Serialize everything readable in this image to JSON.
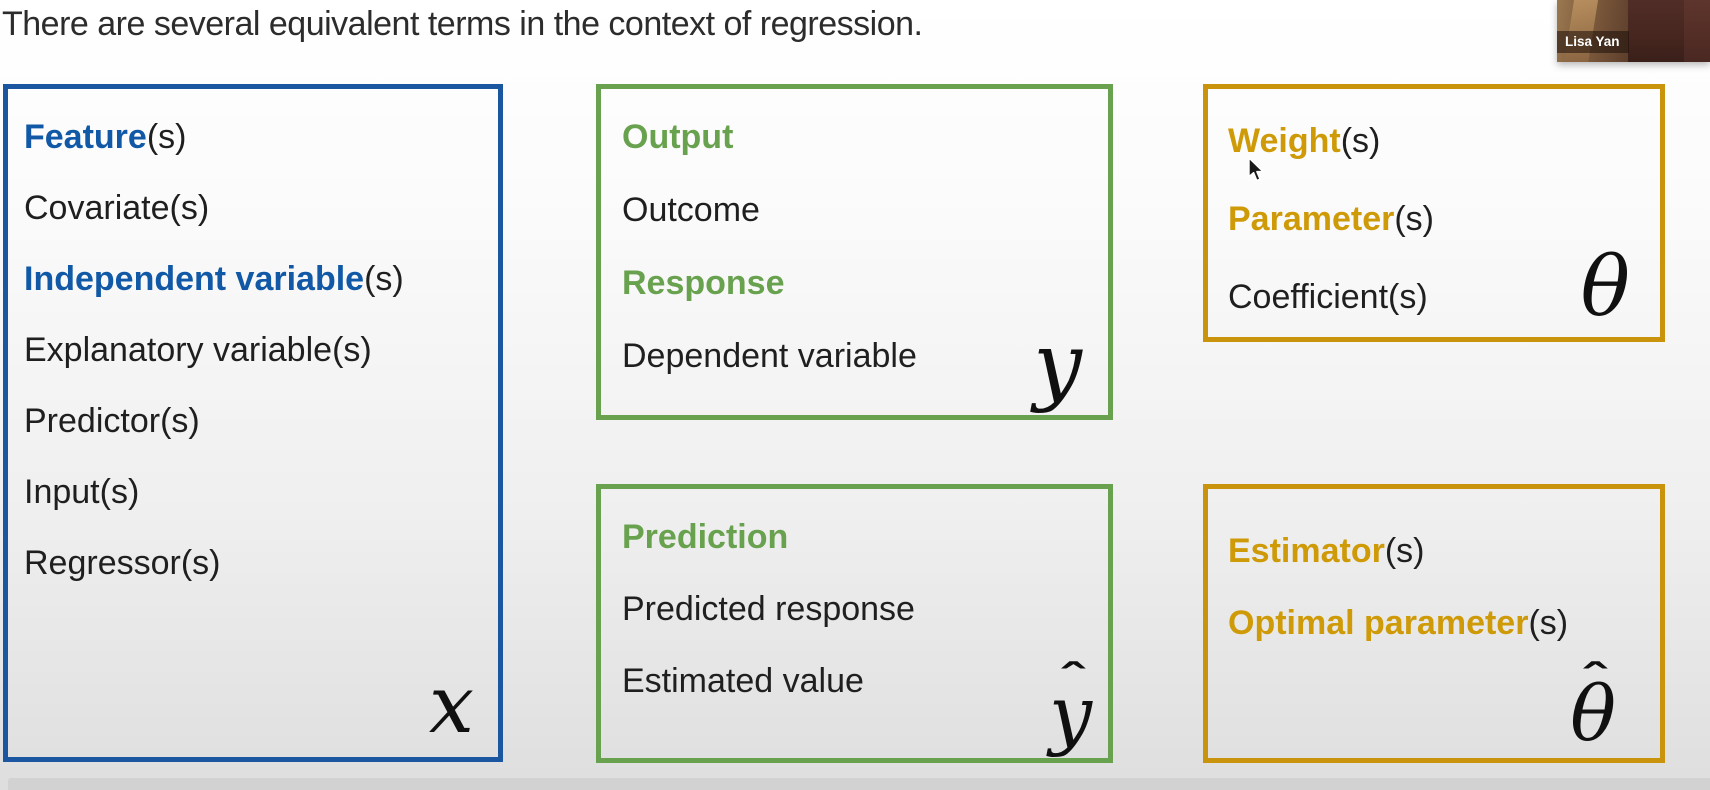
{
  "title": "There are several equivalent terms in the context of regression.",
  "plural_suffix": "(s)",
  "webcam": {
    "name": "Lisa Yan"
  },
  "colors": {
    "blue_accent": "#1158a6",
    "blue_border": "#1b57a0",
    "green_accent": "#69a24f",
    "green_border": "#69a24f",
    "gold_accent": "#cf9a08",
    "gold_border": "#c9940c",
    "body_text": "#1f1f1f",
    "title_text": "#2c2c2c"
  },
  "boxes": [
    {
      "name": "features",
      "accent_color": "#1158a6",
      "border_color": "#1b57a0",
      "terms": [
        {
          "label": "Feature",
          "emph": true,
          "plural": true
        },
        {
          "label": "Covariate",
          "emph": false,
          "plural": true
        },
        {
          "label": "Independent variable",
          "emph": true,
          "plural": true
        },
        {
          "label": "Explanatory variable",
          "emph": false,
          "plural": true
        },
        {
          "label": "Predictor",
          "emph": false,
          "plural": true
        },
        {
          "label": "Input",
          "emph": false,
          "plural": true
        },
        {
          "label": "Regressor",
          "emph": false,
          "plural": true
        }
      ],
      "symbol": {
        "glyph": "x",
        "hat": false
      }
    },
    {
      "name": "output",
      "accent_color": "#69a24f",
      "border_color": "#69a24f",
      "terms": [
        {
          "label": "Output",
          "emph": true,
          "plural": false
        },
        {
          "label": "Outcome",
          "emph": false,
          "plural": false
        },
        {
          "label": "Response",
          "emph": true,
          "plural": false
        },
        {
          "label": "Dependent variable",
          "emph": false,
          "plural": false
        }
      ],
      "symbol": {
        "glyph": "y",
        "hat": false
      }
    },
    {
      "name": "weights",
      "accent_color": "#cf9a08",
      "border_color": "#c9940c",
      "terms": [
        {
          "label": "Weight",
          "emph": true,
          "plural": true
        },
        {
          "label": "Parameter",
          "emph": true,
          "plural": true
        },
        {
          "label": "Coefficient",
          "emph": false,
          "plural": true
        }
      ],
      "symbol": {
        "glyph": "θ",
        "hat": false
      }
    },
    {
      "name": "prediction",
      "accent_color": "#69a24f",
      "border_color": "#69a24f",
      "terms": [
        {
          "label": "Prediction",
          "emph": true,
          "plural": false
        },
        {
          "label": "Predicted response",
          "emph": false,
          "plural": false
        },
        {
          "label": "Estimated value",
          "emph": false,
          "plural": false
        }
      ],
      "symbol": {
        "glyph": "y",
        "hat": true
      }
    },
    {
      "name": "estimator",
      "accent_color": "#cf9a08",
      "border_color": "#c9940c",
      "terms": [
        {
          "label": "Estimator",
          "emph": true,
          "plural": true
        },
        {
          "label": "Optimal parameter",
          "emph": true,
          "plural": true
        }
      ],
      "symbol": {
        "glyph": "θ",
        "hat": true
      }
    }
  ]
}
